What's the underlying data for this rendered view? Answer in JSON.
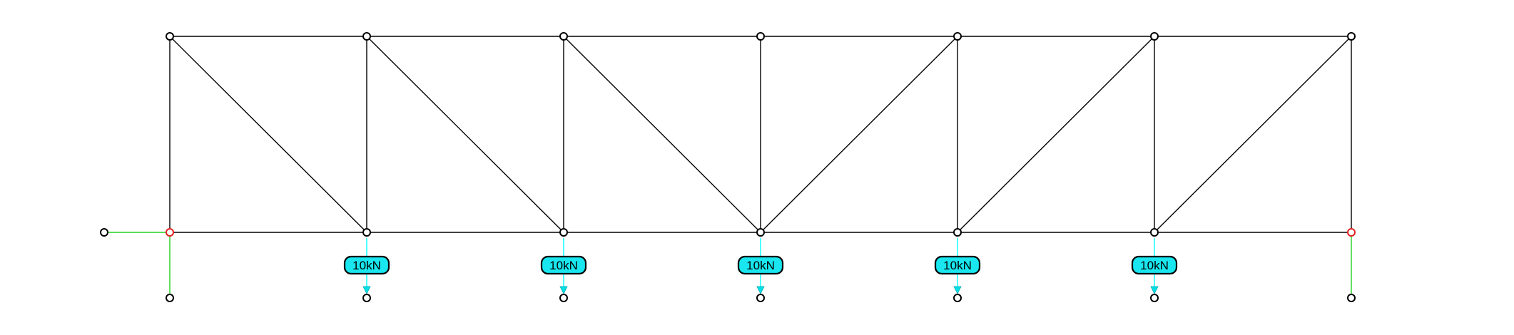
{
  "diagram": {
    "type": "truss",
    "colors": {
      "member": "#000000",
      "support": "#21d321",
      "load": "#00ffff",
      "load_label_fill": "#19e6ee",
      "node_fill": "#ffffff",
      "support_node_stroke": "#e02020"
    },
    "nodes": [
      {
        "id": "T1",
        "role": "top-chord"
      },
      {
        "id": "T2",
        "role": "top-chord"
      },
      {
        "id": "T3",
        "role": "top-chord"
      },
      {
        "id": "T4",
        "role": "top-chord"
      },
      {
        "id": "T5",
        "role": "top-chord"
      },
      {
        "id": "T6",
        "role": "top-chord"
      },
      {
        "id": "T7",
        "role": "top-chord"
      },
      {
        "id": "B1",
        "role": "pin-support"
      },
      {
        "id": "B2",
        "role": "bottom-chord"
      },
      {
        "id": "B3",
        "role": "bottom-chord"
      },
      {
        "id": "B4",
        "role": "bottom-chord"
      },
      {
        "id": "B5",
        "role": "bottom-chord"
      },
      {
        "id": "B6",
        "role": "bottom-chord"
      },
      {
        "id": "B7",
        "role": "roller-support"
      }
    ],
    "members": [
      [
        "T1",
        "T2"
      ],
      [
        "T2",
        "T3"
      ],
      [
        "T3",
        "T4"
      ],
      [
        "T4",
        "T5"
      ],
      [
        "T5",
        "T6"
      ],
      [
        "T6",
        "T7"
      ],
      [
        "B1",
        "B2"
      ],
      [
        "B2",
        "B3"
      ],
      [
        "B3",
        "B4"
      ],
      [
        "B4",
        "B5"
      ],
      [
        "B5",
        "B6"
      ],
      [
        "B6",
        "B7"
      ],
      [
        "T1",
        "B1"
      ],
      [
        "T2",
        "B2"
      ],
      [
        "T3",
        "B3"
      ],
      [
        "T4",
        "B4"
      ],
      [
        "T5",
        "B5"
      ],
      [
        "T6",
        "B6"
      ],
      [
        "T7",
        "B7"
      ],
      [
        "T1",
        "B2"
      ],
      [
        "T2",
        "B3"
      ],
      [
        "T3",
        "B4"
      ],
      [
        "T5",
        "B4"
      ],
      [
        "T6",
        "B5"
      ],
      [
        "T7",
        "B6"
      ]
    ],
    "supports": [
      {
        "node": "B1",
        "type": "pin",
        "links": [
          "horizontal",
          "vertical"
        ]
      },
      {
        "node": "B7",
        "type": "roller",
        "links": [
          "vertical"
        ]
      }
    ],
    "loads": [
      {
        "node": "B2",
        "label": "10kN"
      },
      {
        "node": "B3",
        "label": "10kN"
      },
      {
        "node": "B4",
        "label": "10kN"
      },
      {
        "node": "B5",
        "label": "10kN"
      },
      {
        "node": "B6",
        "label": "10kN"
      }
    ]
  }
}
